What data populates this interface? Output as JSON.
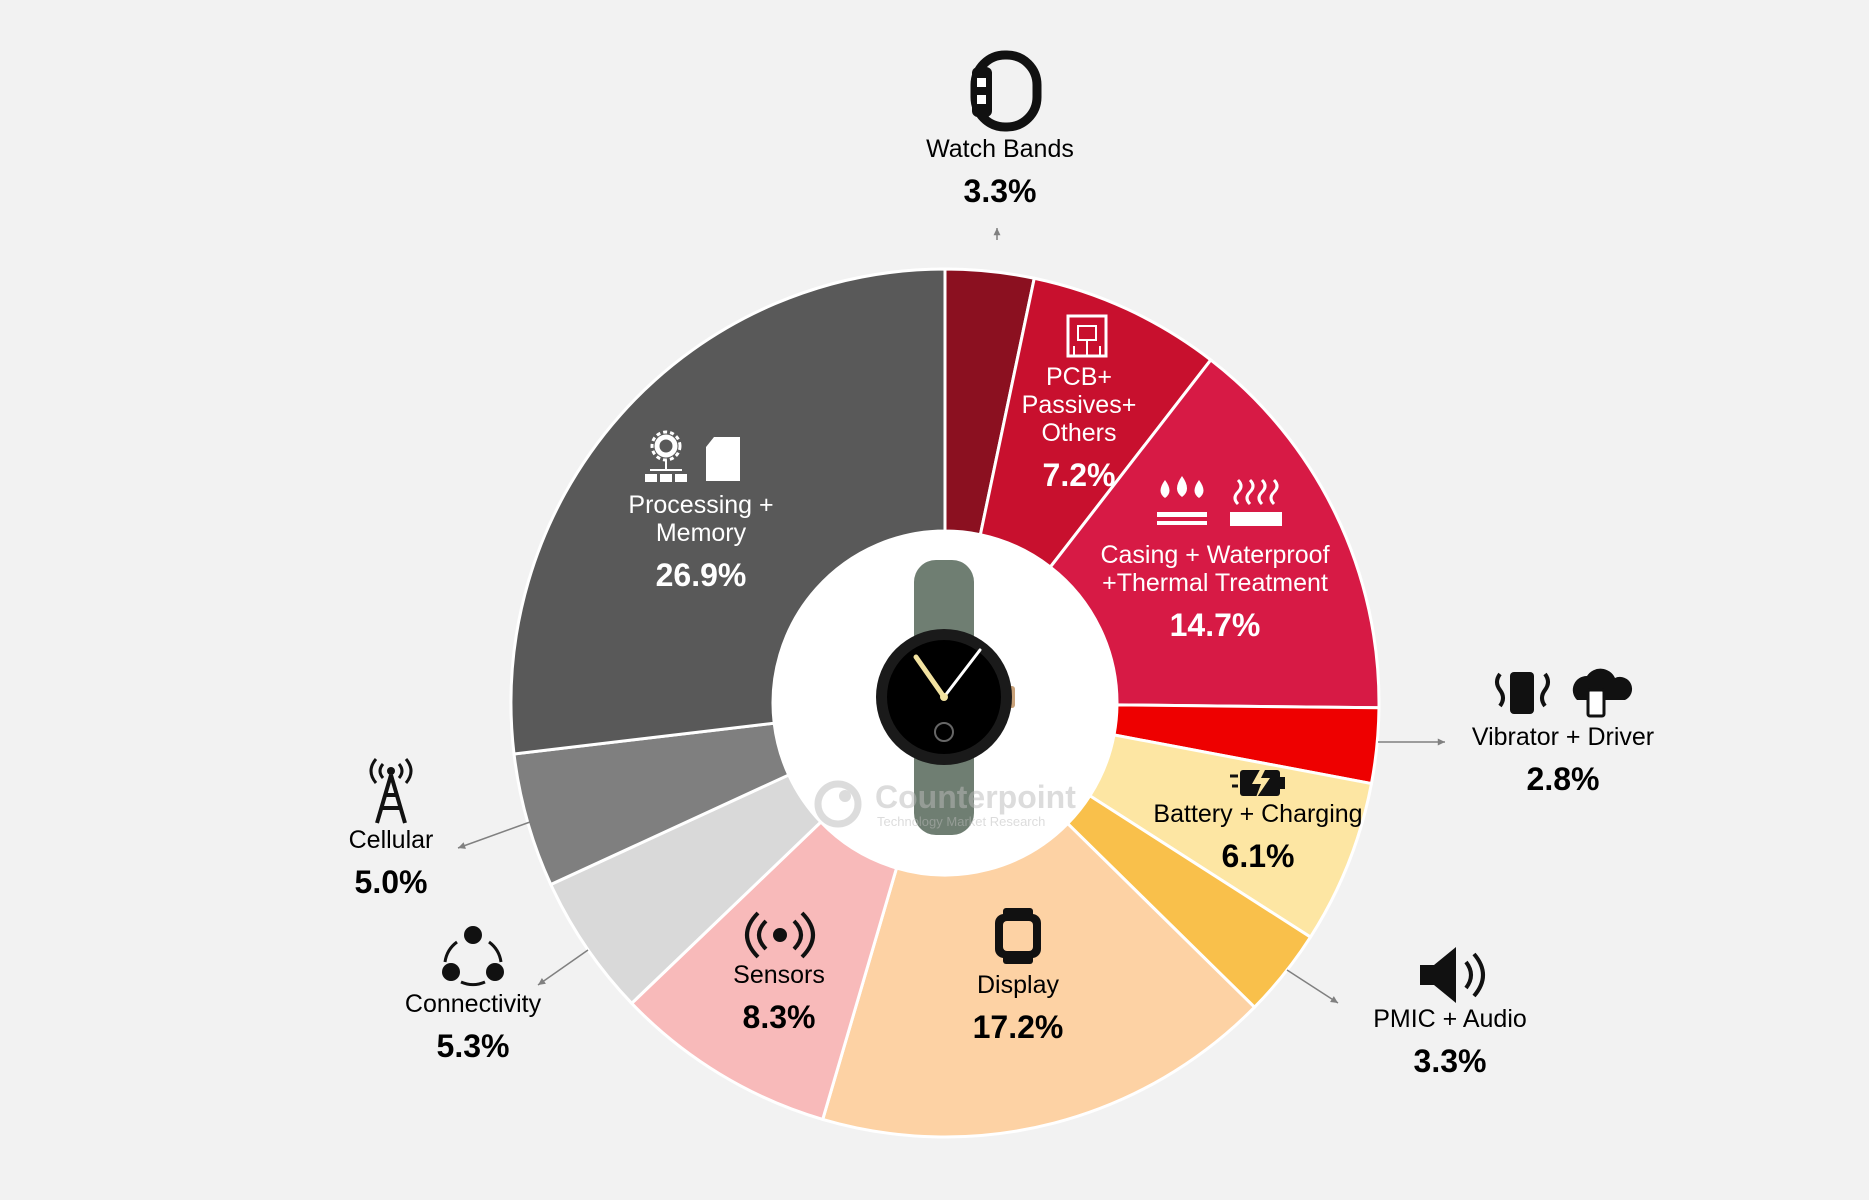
{
  "chart_data": {
    "type": "pie",
    "donut": true,
    "categories": [
      "Watch Bands",
      "PCB+ Passives+ Others",
      "Casing + Waterproof +Thermal Treatment",
      "Vibrator + Driver",
      "Battery + Charging",
      "PMIC + Audio",
      "Display",
      "Sensors",
      "Connectivity",
      "Cellular",
      "Processing + Memory"
    ],
    "values": [
      3.3,
      7.2,
      14.7,
      2.8,
      6.1,
      3.3,
      17.2,
      8.3,
      5.3,
      5.0,
      26.9
    ],
    "value_labels": [
      "3.3%",
      "7.2%",
      "14.7%",
      "2.8%",
      "6.1%",
      "3.3%",
      "17.2%",
      "8.3%",
      "5.3%",
      "5.0%",
      "26.9%"
    ],
    "colors": [
      "#8b1020",
      "#c8102e",
      "#d71a45",
      "#ee0000",
      "#fde6a3",
      "#f9c04b",
      "#fdd2a4",
      "#f8baba",
      "#d9d9d9",
      "#7f7f7f",
      "#595959"
    ],
    "label_colors": [
      "#000000",
      "#ffffff",
      "#ffffff",
      "#000000",
      "#000000",
      "#000000",
      "#000000",
      "#000000",
      "#000000",
      "#000000",
      "#ffffff"
    ],
    "icons": [
      "watch-band-icon",
      "circuit-board-icon",
      "waterproof-heat-icon",
      "vibration-icon",
      "battery-charging-icon",
      "speaker-icon",
      "smartwatch-display-icon",
      "sensor-signal-icon",
      "connectivity-icon",
      "cell-tower-icon",
      "processor-memory-icon"
    ],
    "legend": "none"
  },
  "watermark": {
    "brand": "Counterpoint",
    "tagline": "Technology Market Research"
  },
  "center_image": "smartwatch-photo"
}
